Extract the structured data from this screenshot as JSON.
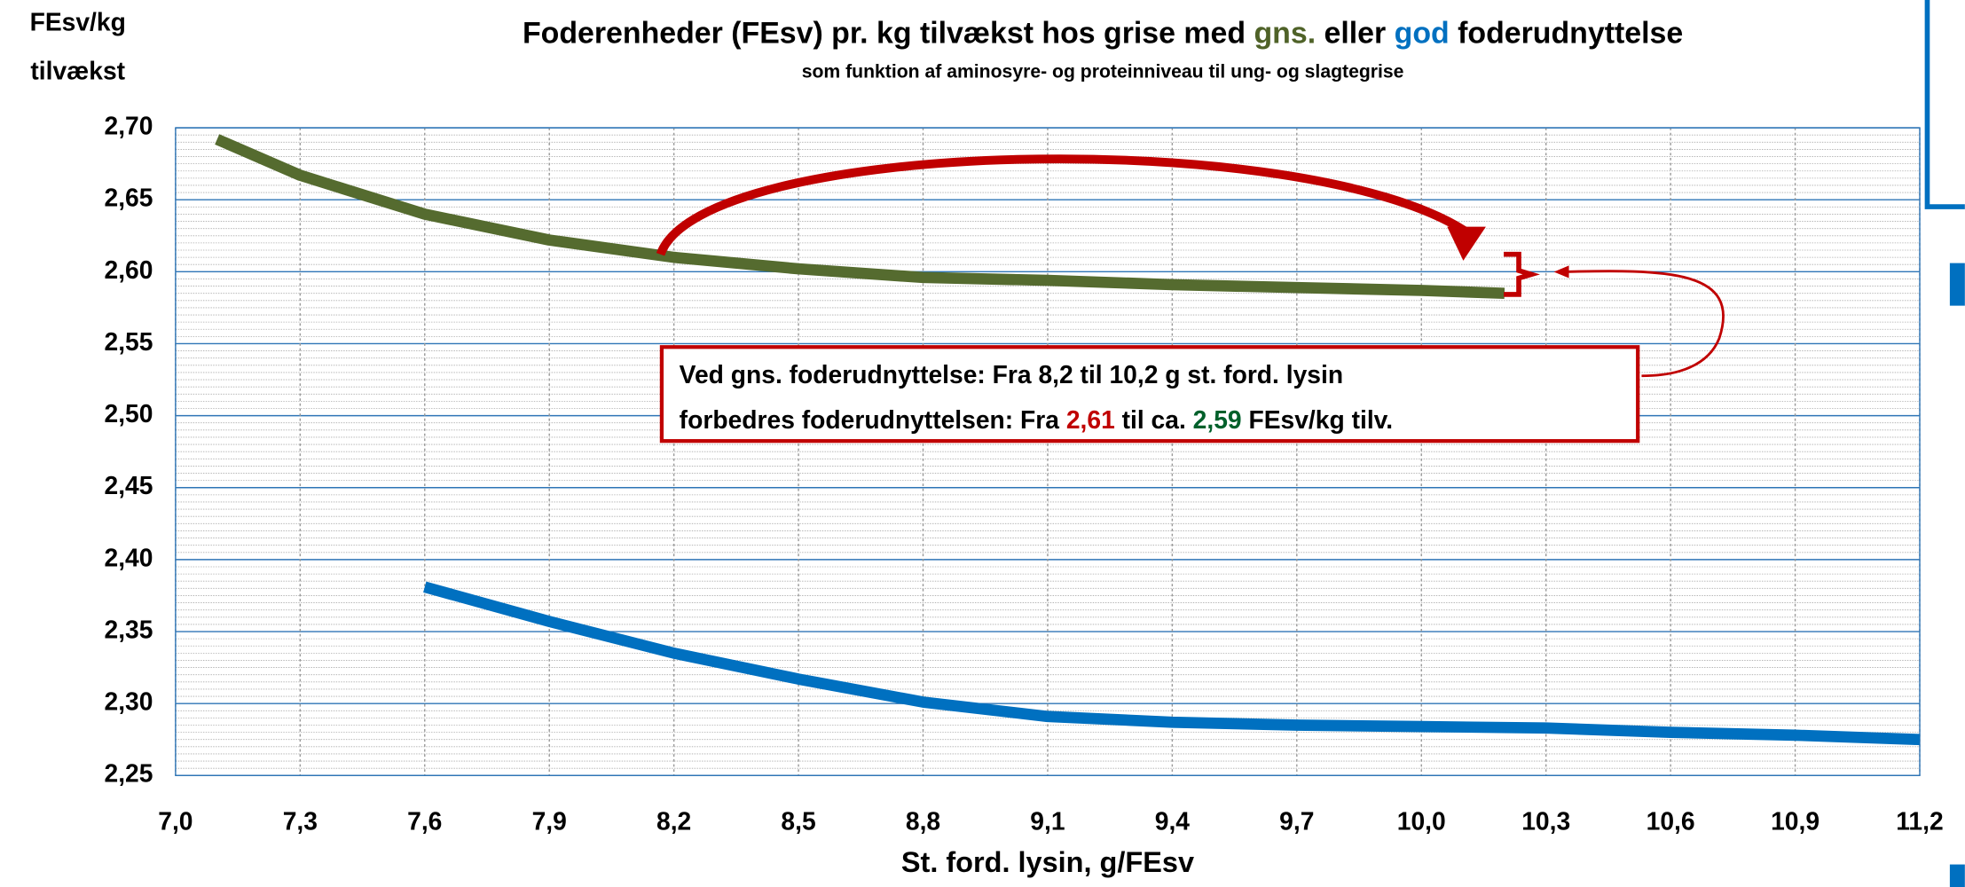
{
  "chart_data": {
    "type": "line",
    "title": [
      "Foderenheder (FEsv) pr. kg tilvækst hos grise med ",
      "gns.",
      " eller ",
      "god",
      " foderudnyttelse"
    ],
    "title_colors": [
      "#000000",
      "#4f6228",
      "#000000",
      "#0070c0",
      "#000000"
    ],
    "subtitle": "som funktion af aminosyre- og proteinniveau til ung- og slagtegrise",
    "ylabel": [
      "FEsv/kg",
      "tilvækst"
    ],
    "xlabel": "St. ford. lysin, g/FEsv",
    "series": [
      {
        "name": "gns.",
        "color": "#556b2f",
        "x": [
          7.1,
          7.3,
          7.6,
          7.9,
          8.2,
          8.5,
          8.8,
          9.1,
          9.4,
          9.7,
          10.0,
          10.2
        ],
        "values": [
          2.692,
          2.667,
          2.64,
          2.622,
          2.61,
          2.602,
          2.596,
          2.594,
          2.591,
          2.589,
          2.587,
          2.585
        ]
      },
      {
        "name": "god",
        "color": "#0070c0",
        "x": [
          7.6,
          7.9,
          8.2,
          8.5,
          8.8,
          9.1,
          9.4,
          9.7,
          10.0,
          10.3,
          10.6,
          10.9,
          11.2
        ],
        "values": [
          2.381,
          2.357,
          2.335,
          2.317,
          2.301,
          2.291,
          2.287,
          2.285,
          2.284,
          2.283,
          2.28,
          2.278,
          2.275
        ]
      }
    ],
    "xlim": [
      7.0,
      11.2
    ],
    "xticks": [
      {
        "value": 7.0,
        "label": "7,0"
      },
      {
        "value": 7.3,
        "label": "7,3"
      },
      {
        "value": 7.6,
        "label": "7,6"
      },
      {
        "value": 7.9,
        "label": "7,9"
      },
      {
        "value": 8.2,
        "label": "8,2"
      },
      {
        "value": 8.5,
        "label": "8,5"
      },
      {
        "value": 8.8,
        "label": "8,8"
      },
      {
        "value": 9.1,
        "label": "9,1"
      },
      {
        "value": 9.4,
        "label": "9,4"
      },
      {
        "value": 9.7,
        "label": "9,7"
      },
      {
        "value": 10.0,
        "label": "10,0"
      },
      {
        "value": 10.3,
        "label": "10,3"
      },
      {
        "value": 10.6,
        "label": "10,6"
      },
      {
        "value": 10.9,
        "label": "10,9"
      },
      {
        "value": 11.2,
        "label": "11,2"
      }
    ],
    "ylim": [
      2.25,
      2.7
    ],
    "yticks": [
      {
        "value": 2.25,
        "label": "2,25"
      },
      {
        "value": 2.3,
        "label": "2,30"
      },
      {
        "value": 2.35,
        "label": "2,35"
      },
      {
        "value": 2.4,
        "label": "2,40"
      },
      {
        "value": 2.45,
        "label": "2,45"
      },
      {
        "value": 2.5,
        "label": "2,50"
      },
      {
        "value": 2.55,
        "label": "2,55"
      },
      {
        "value": 2.6,
        "label": "2,60"
      },
      {
        "value": 2.65,
        "label": "2,65"
      },
      {
        "value": 2.7,
        "label": "2,70"
      }
    ],
    "grid": true,
    "annotation": {
      "lines": [
        [
          "Ved gns. foderudnyttelse: Fra 8,2 til 10,2 g st. ford. lysin"
        ],
        [
          "forbedres foderudnyttelsen: Fra ",
          "2,61",
          " til ca. ",
          "2,59",
          " FEsv/kg tilv."
        ]
      ],
      "colors": [
        [
          "#000000"
        ],
        [
          "#000000",
          "#c00000",
          "#000000",
          "#00602b",
          "#000000"
        ]
      ]
    }
  }
}
